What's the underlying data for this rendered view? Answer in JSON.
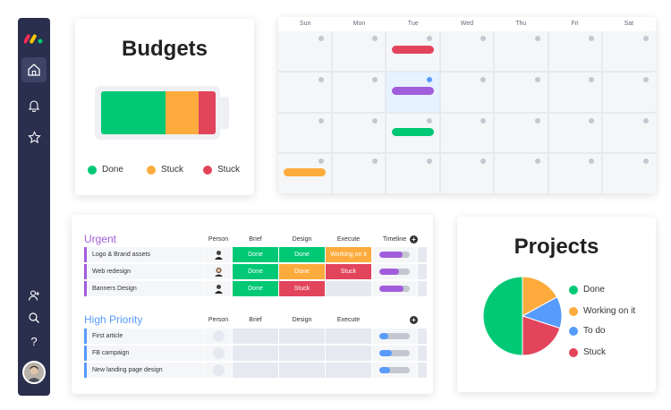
{
  "colors": {
    "done": "#00c875",
    "stuck_orange": "#fdab3d",
    "stuck_red": "#e2445c",
    "working": "#fdab3d",
    "todo": "#579bfc",
    "purple": "#a25ddc",
    "sidebar": "#292f4c"
  },
  "sidebar": {
    "icons": [
      "home-icon",
      "bell-icon",
      "star-icon",
      "add-person-icon",
      "search-icon",
      "help-icon"
    ],
    "help_label": "?"
  },
  "budgets": {
    "title": "Budgets",
    "legend": [
      {
        "label": "Done",
        "color": "#00c875"
      },
      {
        "label": "Stuck",
        "color": "#fdab3d"
      },
      {
        "label": "Stuck",
        "color": "#e2445c"
      }
    ]
  },
  "calendar": {
    "days": [
      "Sun",
      "Mon",
      "Tue",
      "Wed",
      "Thu",
      "Fri",
      "Sat"
    ]
  },
  "board": {
    "columns": {
      "person": "Person",
      "brief": "Brief",
      "design": "Design",
      "execute": "Execute",
      "timeline": "Timeline"
    },
    "urgent": {
      "title": "Urgent",
      "rows": [
        {
          "name": "Logo & Brand assets",
          "brief": "Done",
          "design": "Done",
          "execute": "Working on it",
          "timeline": 0.75
        },
        {
          "name": "Web redesign",
          "brief": "Done",
          "design": "Done",
          "execute": "Stuck",
          "timeline": 0.65
        },
        {
          "name": "Banners Design",
          "brief": "Done",
          "design": "Stuck",
          "execute": "",
          "timeline": 0.8
        }
      ]
    },
    "high_priority": {
      "title": "High Priority",
      "rows": [
        {
          "name": "First article",
          "timeline": 0.3
        },
        {
          "name": "FB campaign",
          "timeline": 0.4
        },
        {
          "name": "New landing page design",
          "timeline": 0.35
        }
      ]
    },
    "add_label": "+"
  },
  "projects": {
    "title": "Projects",
    "legend": [
      {
        "label": "Done",
        "color": "#00c875"
      },
      {
        "label": "Working on it",
        "color": "#fdab3d"
      },
      {
        "label": "To do",
        "color": "#579bfc"
      },
      {
        "label": "Stuck",
        "color": "#e2445c"
      }
    ],
    "shares": [
      0.5,
      0.17,
      0.13,
      0.2
    ]
  }
}
